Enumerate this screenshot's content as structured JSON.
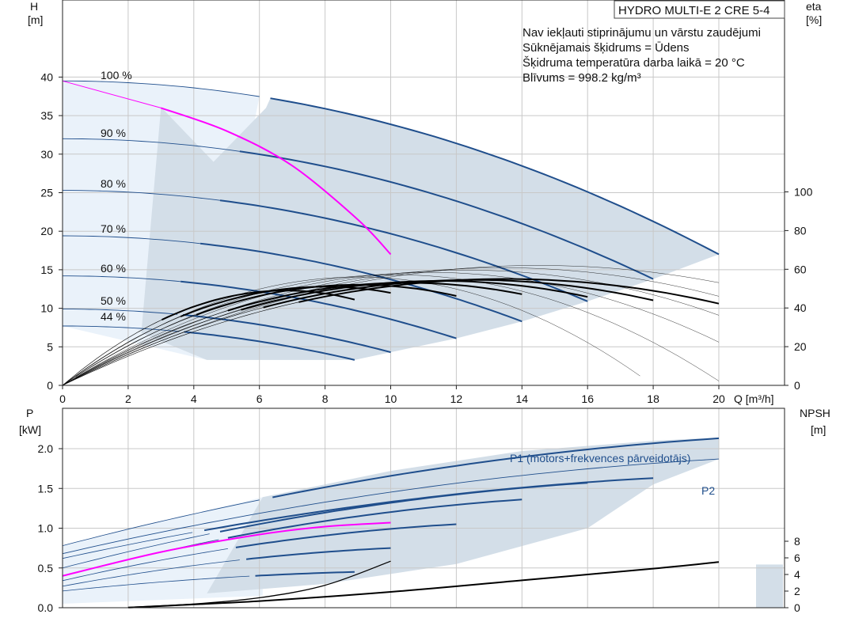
{
  "header": {
    "product": "HYDRO MULTI-E 2 CRE 5-4",
    "notes": [
      "Nav iekļauti stiprinājumu un vārstu zaudējumi",
      "Sūknējamais šķidrums = Ūdens",
      "Šķidruma temperatūra darba laikā = 20 °C",
      "Blīvums = 998.2 kg/m³"
    ]
  },
  "colors": {
    "curve": "#1f4e8c",
    "band": "#d3dee8",
    "band_light": "#eaf2fa",
    "efficiency": "#000000",
    "highlight": "#ff00ff",
    "grid": "#c8c8c8"
  },
  "chart_data": [
    {
      "type": "line",
      "panel": "head-efficiency",
      "xlabel": "Q [m³/h]",
      "x_ticks": [
        "0",
        "2",
        "4",
        "6",
        "8",
        "10",
        "12",
        "14",
        "16",
        "18",
        "20"
      ],
      "xlim": [
        0,
        22
      ],
      "ylabel_left": "H",
      "ylabel_left_unit": "[m]",
      "y_ticks_left": [
        "0",
        "5",
        "10",
        "15",
        "20",
        "25",
        "30",
        "35",
        "40"
      ],
      "ylim_left": [
        0,
        50
      ],
      "ylabel_right": "eta",
      "ylabel_right_unit": "[%]",
      "y_ticks_right": [
        "0",
        "20",
        "40",
        "60",
        "80",
        "100"
      ],
      "speed_labels": [
        "100 %",
        "90 %",
        "80 %",
        "70 %",
        "60 %",
        "50 %",
        "44 %"
      ],
      "head_curves": [
        {
          "speed": 100,
          "H0": 39.5,
          "Qmax": 20,
          "Hend": 17.0
        },
        {
          "speed": 90,
          "H0": 32.0,
          "Qmax": 18,
          "Hend": 13.8
        },
        {
          "speed": 80,
          "H0": 25.3,
          "Qmax": 16,
          "Hend": 10.9
        },
        {
          "speed": 70,
          "H0": 19.4,
          "Qmax": 14,
          "Hend": 8.3
        },
        {
          "speed": 60,
          "H0": 14.2,
          "Qmax": 12,
          "Hend": 6.1
        },
        {
          "speed": 50,
          "H0": 9.9,
          "Qmax": 10,
          "Hend": 4.3
        },
        {
          "speed": 44,
          "H0": 7.7,
          "Qmax": 8.9,
          "Hend": 3.3
        }
      ],
      "highlight_head": [
        [
          3,
          36.0
        ],
        [
          5,
          33.0
        ],
        [
          7,
          28.5
        ],
        [
          9,
          21.5
        ],
        [
          10,
          17.0
        ]
      ],
      "efficiency_curves": [
        {
          "Qmax": 20,
          "peak_Q": 13.5,
          "peak_eta": 55
        },
        {
          "Qmax": 18,
          "peak_Q": 12.5,
          "peak_eta": 54.5
        },
        {
          "Qmax": 16,
          "peak_Q": 11.5,
          "peak_eta": 54
        },
        {
          "Qmax": 14,
          "peak_Q": 10.5,
          "peak_eta": 53
        },
        {
          "Qmax": 12,
          "peak_Q": 9.0,
          "peak_eta": 52
        },
        {
          "Qmax": 10,
          "peak_Q": 8.0,
          "peak_eta": 51
        },
        {
          "Qmax": 8.9,
          "peak_Q": 6.8,
          "peak_eta": 49
        }
      ]
    },
    {
      "type": "line",
      "panel": "power-npsh",
      "ylabel_left": "P",
      "ylabel_left_unit": "[kW]",
      "y_ticks_left": [
        "0.0",
        "0.5",
        "1.0",
        "1.5",
        "2.0"
      ],
      "ylim_left": [
        0,
        2.45
      ],
      "ylabel_right": "NPSH",
      "ylabel_right_unit": "[m]",
      "y_ticks_right": [
        "0",
        "2",
        "4",
        "6",
        "8"
      ],
      "series_labels": {
        "p1": "P1 (motors+frekvences pārveidotājs)",
        "p2": "P2"
      },
      "p1_curves": [
        {
          "Qmax": 20,
          "P0": 0.78,
          "Pend": 2.13
        },
        {
          "Qmax": 18,
          "P0": 0.62,
          "Pend": 1.63
        },
        {
          "Qmax": 16,
          "P0": 0.5,
          "Pend": 1.57
        },
        {
          "Qmax": 14,
          "P0": 0.4,
          "Pend": 1.36
        },
        {
          "Qmax": 12,
          "P0": 0.34,
          "Pend": 1.05
        },
        {
          "Qmax": 10,
          "P0": 0.27,
          "Pend": 0.75
        },
        {
          "Qmax": 8.9,
          "P0": 0.21,
          "Pend": 0.45
        }
      ],
      "p2_curve": {
        "Qmax": 20,
        "P0": 0.68,
        "Pend": 1.87
      },
      "highlight_power": [
        [
          0,
          0.4
        ],
        [
          3,
          0.7
        ],
        [
          6,
          0.92
        ],
        [
          8,
          1.02
        ],
        [
          10,
          1.07
        ]
      ],
      "npsh_curve": [
        [
          2,
          0.02
        ],
        [
          6,
          0.8
        ],
        [
          10,
          1.9
        ],
        [
          14,
          3.3
        ],
        [
          18,
          4.7
        ],
        [
          20,
          5.5
        ]
      ],
      "npsh_highlight": [
        [
          2,
          0.05
        ],
        [
          4,
          0.45
        ],
        [
          6,
          1.2
        ],
        [
          8,
          2.7
        ],
        [
          10,
          5.6
        ]
      ]
    }
  ]
}
